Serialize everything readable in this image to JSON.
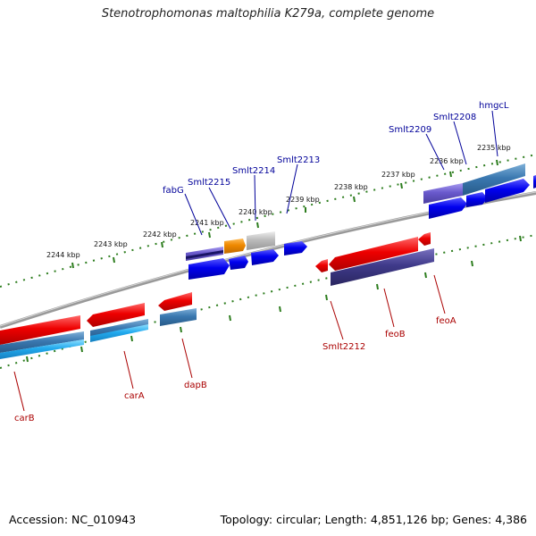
{
  "title": "Stenotrophomonas maltophilia K279a, complete genome",
  "footer": {
    "accession": "Accession: NC_010943",
    "topology": "Topology: circular; Length: 4,851,126 bp; Genes: 4,386"
  },
  "scale_labels": [
    "2244 kbp",
    "2243 kbp",
    "2242 kbp",
    "2241 kbp",
    "2240 kbp",
    "2239 kbp",
    "2238 kbp",
    "2237 kbp",
    "2236 kbp",
    "2235 kbp"
  ],
  "forward_gene_labels": [
    "fabG",
    "Smlt2215",
    "Smlt2214",
    "Smlt2213",
    "Smlt2209",
    "Smlt2208",
    "hmgcL"
  ],
  "reverse_gene_labels": [
    "carB",
    "carA",
    "dapB",
    "Smlt2212",
    "feoB",
    "feoA"
  ],
  "colors": {
    "forward_label": "#000099",
    "reverse_label": "#aa0000",
    "backbone": "#888888",
    "tick": "#2d7d1e",
    "gene_blue": "#0000ee",
    "gene_red": "#ee0000",
    "gene_steel": "#3a78b0",
    "gene_cyan": "#22aaee",
    "gene_purple": "#6a5acd",
    "gene_navy": "#3f3a8a",
    "gene_orange": "#ee8800",
    "gene_grey": "#bbbbbb"
  }
}
